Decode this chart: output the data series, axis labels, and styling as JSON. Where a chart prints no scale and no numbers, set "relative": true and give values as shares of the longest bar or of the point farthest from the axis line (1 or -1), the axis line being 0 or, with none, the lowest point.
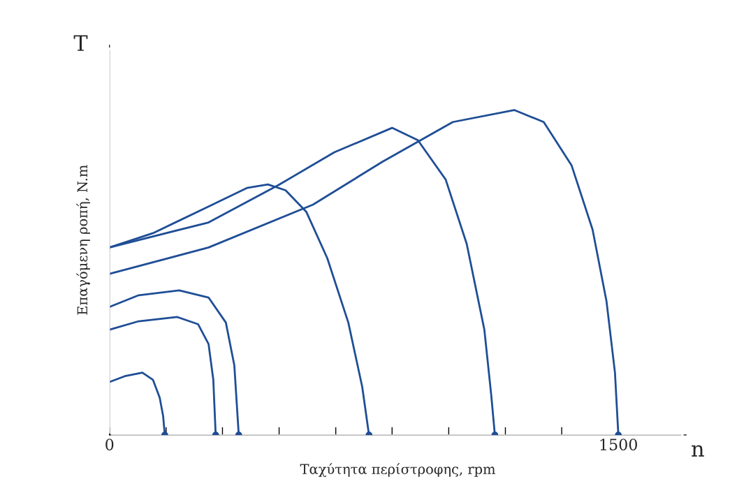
{
  "chart_data": {
    "type": "line",
    "xlabel": "Ταχύτητα περίστροφης, rpm",
    "ylabel": "Επαγόμενη ροπή, N.m",
    "annotations": [
      "T",
      "n"
    ],
    "relative": true,
    "xlim": [
      0,
      1700
    ],
    "xticks": [
      0,
      {
        "value": 167,
        "label": null
      },
      {
        "value": 333,
        "label": null
      },
      {
        "value": 500,
        "label": null
      },
      {
        "value": 667,
        "label": null
      },
      {
        "value": 833,
        "label": null
      },
      {
        "value": 1000,
        "label": null
      },
      {
        "value": 1167,
        "label": null
      },
      {
        "value": 1333,
        "label": null
      },
      1500
    ],
    "grid": false,
    "line_style": "solid",
    "series": [
      {
        "color": "#1f4e96",
        "x": [
          0,
          45,
          97,
          128,
          148,
          158,
          163
        ],
        "values": [
          0.163,
          0.181,
          0.192,
          0.17,
          0.115,
          0.059,
          0
        ]
      },
      {
        "color": "#1f4e96",
        "x": [
          0,
          86,
          200,
          261,
          292,
          306,
          313
        ],
        "values": [
          0.324,
          0.35,
          0.363,
          0.341,
          0.28,
          0.17,
          0
        ]
      },
      {
        "color": "#1f4e96",
        "x": [
          0,
          86,
          206,
          292,
          343,
          368,
          381
        ],
        "values": [
          0.394,
          0.43,
          0.445,
          0.423,
          0.346,
          0.214,
          0
        ]
      },
      {
        "color": "#1f4e96",
        "x": [
          0,
          128,
          292,
          405,
          467,
          519,
          580,
          642,
          704,
          745,
          765
        ],
        "values": [
          0.577,
          0.621,
          0.703,
          0.76,
          0.771,
          0.753,
          0.687,
          0.544,
          0.346,
          0.148,
          0
        ]
      },
      {
        "color": "#1f4e96",
        "x": [
          0,
          292,
          498,
          663,
          833,
          909,
          991,
          1053,
          1105,
          1125,
          1136
        ],
        "values": [
          0.577,
          0.654,
          0.769,
          0.87,
          0.945,
          0.907,
          0.786,
          0.588,
          0.324,
          0.126,
          0
        ]
      },
      {
        "color": "#1f4e96",
        "x": [
          0,
          292,
          600,
          805,
          1012,
          1193,
          1280,
          1362,
          1424,
          1465,
          1490,
          1500
        ],
        "values": [
          0.496,
          0.577,
          0.709,
          0.841,
          0.963,
          1,
          0.963,
          0.83,
          0.632,
          0.412,
          0.192,
          0
        ]
      },
      {
        "type": "scatter",
        "color": "#1f4e96",
        "marker": "circle",
        "x": [
          163,
          313,
          381,
          765,
          1136,
          1500
        ],
        "values": [
          0,
          0,
          0,
          0,
          0,
          0
        ]
      }
    ]
  }
}
